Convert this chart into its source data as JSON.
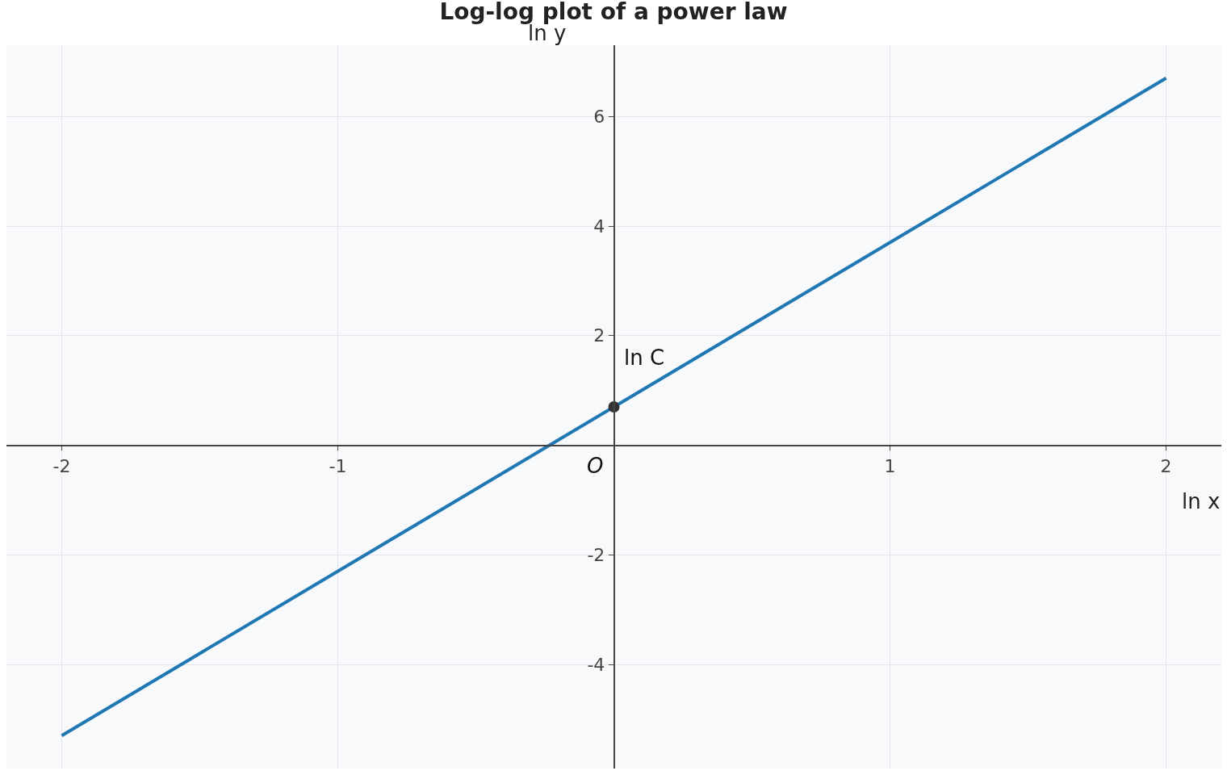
{
  "chart_data": {
    "type": "line",
    "title": "Log-log plot of a power law",
    "xlabel": "ln x",
    "ylabel": "ln y",
    "series": [
      {
        "color": "#1f77b4",
        "x": [
          -2,
          2
        ],
        "values": [
          -5.3,
          6.7
        ],
        "marker": "none"
      },
      {
        "type": "scatter",
        "color": "#333333",
        "x": [
          0
        ],
        "values": [
          0.7
        ],
        "marker": "circle"
      }
    ],
    "annotations": [
      {
        "text": "ln C",
        "x": 0,
        "y": 0.7
      },
      "O"
    ],
    "xlim": [
      -2.2,
      2.2
    ],
    "ylim": [
      -5.9,
      7.3
    ],
    "xticks": [
      -2,
      -1,
      1,
      2
    ],
    "yticks": [
      -4,
      -2,
      2,
      4,
      6
    ],
    "grid": true
  }
}
